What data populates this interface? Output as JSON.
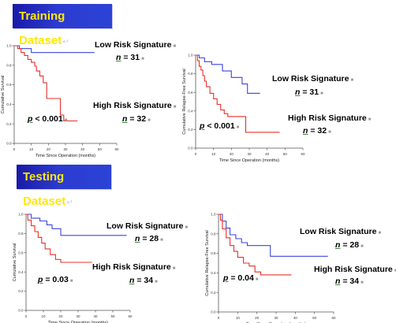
{
  "banners": {
    "training": "Training Dataset",
    "testing": "Testing Dataset"
  },
  "colors": {
    "low_risk": "#3b45e0",
    "high_risk": "#e8312a",
    "axis": "#555555",
    "banner_text": "#ffe800",
    "banner_bg": "#2233c0"
  },
  "labels": {
    "low": "Low Risk Signature",
    "high": "High Risk Signature"
  },
  "chart_data": [
    {
      "type": "line",
      "panel": "training-os",
      "ylabel": "Cumulative Survival",
      "xlabel": "Time Since Operation (months)",
      "xlim": [
        0,
        60
      ],
      "ylim": [
        0,
        1.0
      ],
      "xticks": [
        "0",
        "10",
        "20",
        "30",
        "40",
        "50",
        "60"
      ],
      "yticks": [
        "0.0",
        "0.2",
        "0.4",
        "0.6",
        "0.8",
        "1.0"
      ],
      "p_value": "< 0.001",
      "n_low": "31",
      "n_high": "32",
      "series": [
        {
          "name": "Low Risk Signature",
          "x": [
            0,
            3,
            3,
            10,
            10,
            47
          ],
          "y": [
            1.0,
            1.0,
            0.97,
            0.97,
            0.93,
            0.93
          ]
        },
        {
          "name": "High Risk Signature",
          "x": [
            0,
            2,
            2,
            4,
            4,
            6,
            6,
            8,
            8,
            10,
            10,
            12,
            12,
            13,
            13,
            15,
            15,
            17,
            17,
            19,
            19,
            22,
            22,
            27,
            27,
            29,
            29,
            37
          ],
          "y": [
            1.0,
            1.0,
            0.97,
            0.97,
            0.93,
            0.93,
            0.9,
            0.9,
            0.86,
            0.86,
            0.83,
            0.83,
            0.79,
            0.79,
            0.74,
            0.74,
            0.69,
            0.69,
            0.62,
            0.62,
            0.46,
            0.46,
            0.46,
            0.46,
            0.29,
            0.29,
            0.23,
            0.23
          ]
        }
      ]
    },
    {
      "type": "line",
      "panel": "training-rfs",
      "ylabel": "Cumulative Relapse-Free Survival",
      "xlabel": "Time Since Operation (months)",
      "xlim": [
        0,
        60
      ],
      "ylim": [
        0,
        1.0
      ],
      "xticks": [
        "0",
        "10",
        "20",
        "30",
        "40",
        "50",
        "60"
      ],
      "yticks": [
        "0.0",
        "0.2",
        "0.4",
        "0.6",
        "0.8",
        "1.0"
      ],
      "p_value": "< 0.001",
      "n_low": "31",
      "n_high": "32",
      "series": [
        {
          "name": "Low Risk Signature",
          "x": [
            0,
            2,
            2,
            5,
            5,
            9,
            9,
            15,
            15,
            20,
            20,
            26,
            26,
            29,
            29,
            36
          ],
          "y": [
            1.0,
            1.0,
            0.97,
            0.97,
            0.93,
            0.93,
            0.9,
            0.9,
            0.83,
            0.83,
            0.76,
            0.76,
            0.69,
            0.69,
            0.59,
            0.59
          ]
        },
        {
          "name": "High Risk Signature",
          "x": [
            0,
            1,
            1,
            2,
            2,
            3,
            3,
            4,
            4,
            5,
            5,
            6,
            6,
            8,
            8,
            10,
            10,
            12,
            12,
            14,
            14,
            16,
            16,
            18,
            18,
            28,
            28,
            47
          ],
          "y": [
            1.0,
            1.0,
            0.94,
            0.94,
            0.88,
            0.88,
            0.84,
            0.84,
            0.78,
            0.78,
            0.72,
            0.72,
            0.66,
            0.66,
            0.59,
            0.59,
            0.53,
            0.53,
            0.47,
            0.47,
            0.41,
            0.41,
            0.37,
            0.37,
            0.34,
            0.34,
            0.17,
            0.17
          ]
        }
      ]
    },
    {
      "type": "line",
      "panel": "testing-os",
      "ylabel": "Cumulative Survival",
      "xlabel": "Time Since Operation (months)",
      "xlim": [
        0,
        60
      ],
      "ylim": [
        0,
        1.0
      ],
      "xticks": [
        "0",
        "10",
        "20",
        "30",
        "40",
        "50",
        "60"
      ],
      "yticks": [
        "0.0",
        "0.2",
        "0.4",
        "0.6",
        "0.8",
        "1.0"
      ],
      "p_value": "= 0.03",
      "n_low": "28",
      "n_high": "34",
      "series": [
        {
          "name": "Low Risk Signature",
          "x": [
            0,
            3,
            3,
            8,
            8,
            12,
            12,
            15,
            15,
            20,
            20,
            58
          ],
          "y": [
            1.0,
            1.0,
            0.96,
            0.96,
            0.93,
            0.93,
            0.89,
            0.89,
            0.85,
            0.85,
            0.78,
            0.78
          ]
        },
        {
          "name": "High Risk Signature",
          "x": [
            0,
            1,
            1,
            3,
            3,
            5,
            5,
            7,
            7,
            9,
            9,
            11,
            11,
            14,
            14,
            17,
            17,
            20,
            20,
            38
          ],
          "y": [
            1.0,
            1.0,
            0.94,
            0.94,
            0.88,
            0.88,
            0.82,
            0.82,
            0.76,
            0.76,
            0.7,
            0.7,
            0.64,
            0.64,
            0.58,
            0.58,
            0.53,
            0.53,
            0.5,
            0.5
          ]
        }
      ]
    },
    {
      "type": "line",
      "panel": "testing-rfs",
      "ylabel": "Cumulative Relapse-Free Survival",
      "xlabel": "Time Since Operation (months)",
      "xlim": [
        0,
        60
      ],
      "ylim": [
        0,
        1.0
      ],
      "xticks": [
        "0",
        "10",
        "20",
        "30",
        "40",
        "50",
        "60"
      ],
      "yticks": [
        "0.0",
        "0.2",
        "0.4",
        "0.6",
        "0.8",
        "1.0"
      ],
      "p_value": "= 0.04",
      "n_low": "28",
      "n_high": "34",
      "series": [
        {
          "name": "Low Risk Signature",
          "x": [
            0,
            2,
            2,
            4,
            4,
            6,
            6,
            9,
            9,
            12,
            12,
            15,
            15,
            27,
            27,
            57
          ],
          "y": [
            1.0,
            1.0,
            0.93,
            0.93,
            0.86,
            0.86,
            0.79,
            0.79,
            0.75,
            0.75,
            0.71,
            0.71,
            0.68,
            0.68,
            0.57,
            0.57
          ]
        },
        {
          "name": "High Risk Signature",
          "x": [
            0,
            1,
            1,
            2,
            2,
            4,
            4,
            6,
            6,
            8,
            8,
            10,
            10,
            13,
            13,
            16,
            16,
            19,
            19,
            22,
            22,
            38
          ],
          "y": [
            1.0,
            1.0,
            0.94,
            0.94,
            0.85,
            0.85,
            0.76,
            0.76,
            0.68,
            0.68,
            0.62,
            0.62,
            0.56,
            0.56,
            0.5,
            0.5,
            0.47,
            0.47,
            0.41,
            0.41,
            0.38,
            0.38
          ]
        }
      ]
    }
  ]
}
